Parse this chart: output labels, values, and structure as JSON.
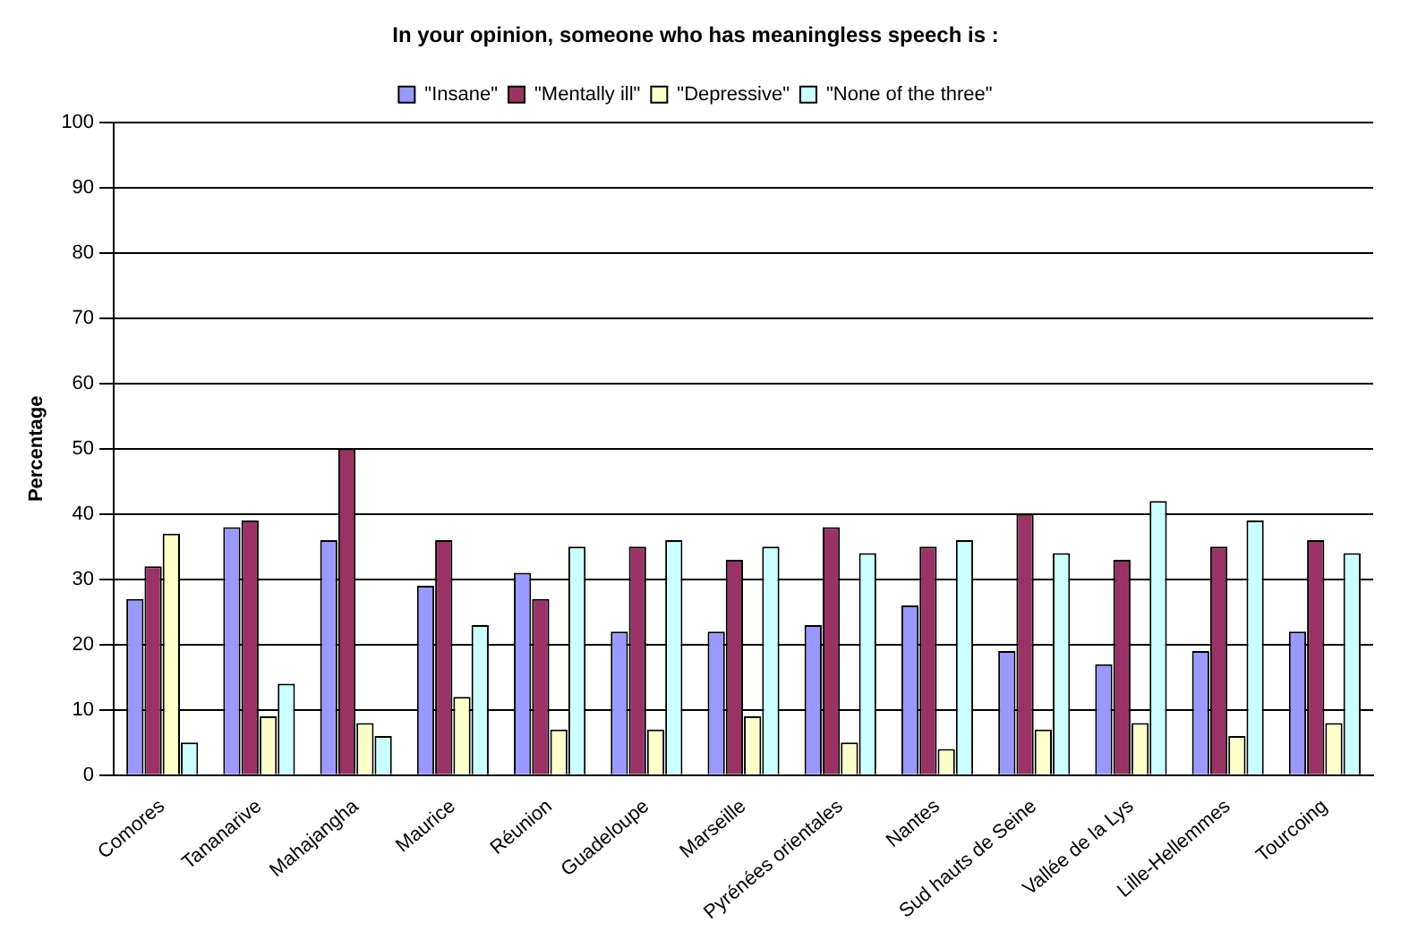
{
  "chart_data": {
    "type": "bar",
    "title": "In your opinion, someone who has meaningless speech is :",
    "ylabel": "Percentage",
    "categories": [
      "Comores",
      "Tananarive",
      "Mahajangha",
      "Maurice",
      "Réunion",
      "Guadeloupe",
      "Marseille",
      "Pyrénées orientales",
      "Nantes",
      "Sud hauts de Seine",
      "Vallée de la Lys",
      "Lille-Hellemmes",
      "Tourcoing"
    ],
    "series": [
      {
        "name": "\"Insane\"",
        "color": "#9999ff",
        "values": [
          27,
          38,
          36,
          29,
          31,
          22,
          22,
          23,
          26,
          19,
          17,
          19,
          22
        ]
      },
      {
        "name": "\"Mentally ill\"",
        "color": "#993366",
        "values": [
          32,
          39,
          50,
          36,
          27,
          35,
          33,
          38,
          35,
          40,
          33,
          35,
          36
        ]
      },
      {
        "name": "\"Depressive\"",
        "color": "#ffffcc",
        "values": [
          37,
          9,
          8,
          12,
          7,
          7,
          9,
          5,
          4,
          7,
          8,
          6,
          8
        ]
      },
      {
        "name": "\"None of the three\"",
        "color": "#ccffff",
        "values": [
          5,
          14,
          6,
          23,
          35,
          36,
          35,
          34,
          36,
          34,
          42,
          39,
          34
        ]
      }
    ],
    "ylim": [
      0,
      100
    ],
    "yticks": [
      0,
      10,
      20,
      30,
      40,
      50,
      60,
      70,
      80,
      90,
      100
    ],
    "grid": "y",
    "legend": "top"
  }
}
